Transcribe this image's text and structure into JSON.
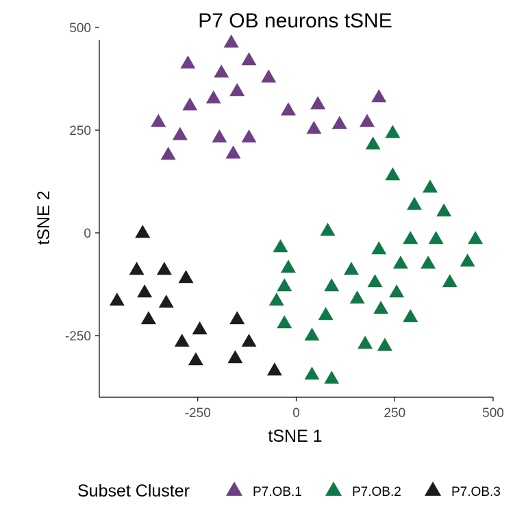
{
  "chart_data": {
    "type": "scatter",
    "title": "P7 OB neurons tSNE",
    "xlabel": "tSNE 1",
    "ylabel": "tSNE 2",
    "xlim": [
      -500,
      500
    ],
    "ylim": [
      -400,
      500
    ],
    "xticks": [
      -250,
      0,
      250,
      500
    ],
    "yticks": [
      -250,
      0,
      250,
      500
    ],
    "grid": false,
    "legend_title": "Subset Cluster",
    "legend_position": "bottom",
    "marker": "triangle",
    "series": [
      {
        "name": "P7.OB.1",
        "color": "#6e3f84",
        "points": [
          [
            -165,
            463
          ],
          [
            -275,
            412
          ],
          [
            -120,
            420
          ],
          [
            -190,
            390
          ],
          [
            -70,
            378
          ],
          [
            -210,
            327
          ],
          [
            -150,
            345
          ],
          [
            -270,
            310
          ],
          [
            -20,
            298
          ],
          [
            55,
            313
          ],
          [
            -350,
            270
          ],
          [
            -295,
            238
          ],
          [
            -195,
            232
          ],
          [
            -120,
            232
          ],
          [
            -325,
            190
          ],
          [
            -160,
            193
          ],
          [
            45,
            253
          ],
          [
            110,
            265
          ],
          [
            180,
            270
          ],
          [
            210,
            330
          ]
        ]
      },
      {
        "name": "P7.OB.2",
        "color": "#107848",
        "points": [
          [
            245,
            243
          ],
          [
            195,
            215
          ],
          [
            245,
            140
          ],
          [
            340,
            110
          ],
          [
            300,
            68
          ],
          [
            375,
            52
          ],
          [
            80,
            5
          ],
          [
            -40,
            -35
          ],
          [
            210,
            -40
          ],
          [
            290,
            -15
          ],
          [
            355,
            -15
          ],
          [
            455,
            -15
          ],
          [
            -20,
            -85
          ],
          [
            140,
            -90
          ],
          [
            265,
            -75
          ],
          [
            335,
            -75
          ],
          [
            435,
            -70
          ],
          [
            200,
            -120
          ],
          [
            90,
            -130
          ],
          [
            -30,
            -130
          ],
          [
            390,
            -120
          ],
          [
            255,
            -145
          ],
          [
            155,
            -160
          ],
          [
            -50,
            -165
          ],
          [
            215,
            -185
          ],
          [
            290,
            -205
          ],
          [
            75,
            -200
          ],
          [
            -30,
            -220
          ],
          [
            40,
            -250
          ],
          [
            175,
            -270
          ],
          [
            225,
            -275
          ],
          [
            40,
            -345
          ],
          [
            90,
            -355
          ]
        ]
      },
      {
        "name": "P7.OB.3",
        "color": "#1c1c1c",
        "points": [
          [
            -390,
            0
          ],
          [
            -405,
            -90
          ],
          [
            -335,
            -90
          ],
          [
            -280,
            -110
          ],
          [
            -385,
            -145
          ],
          [
            -455,
            -165
          ],
          [
            -330,
            -170
          ],
          [
            -375,
            -210
          ],
          [
            -150,
            -210
          ],
          [
            -245,
            -235
          ],
          [
            -290,
            -265
          ],
          [
            -120,
            -265
          ],
          [
            -255,
            -310
          ],
          [
            -155,
            -305
          ],
          [
            -55,
            -335
          ]
        ]
      }
    ]
  }
}
